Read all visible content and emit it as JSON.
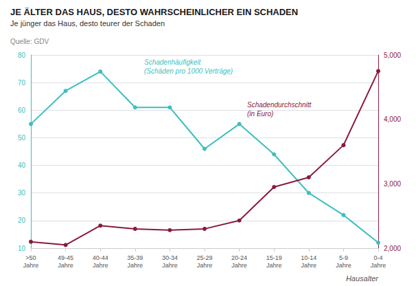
{
  "chart_data": {
    "type": "line",
    "title": "JE ÄLTER DAS HAUS, DESTO WAHRSCHEINLICHER EIN SCHADEN",
    "subtitle": "Je jünger das Haus, desto teurer der Schaden",
    "source": "Quelle: GDV",
    "xlabel": "Hausalter",
    "categories": [
      ">50\nJahre",
      "49-45\nJahre",
      "40-44\nJahre",
      "35-39\nJahre",
      "30-34\nJahre",
      "25-29\nJahre",
      "20-24\nJahre",
      "15-19\nJahre",
      "10-14\nJahre",
      "5-9\nJahre",
      "0-4\nJahre"
    ],
    "series": [
      {
        "name": "Schadenhäufigkeit\n(Schäden pro 1000 Verträge)",
        "color": "#3BBFBF",
        "values": [
          55,
          67,
          74,
          61,
          61,
          46,
          55,
          44,
          30,
          22,
          12
        ]
      },
      {
        "name": "Schadendurchschnitt\n(in Euro)",
        "color": "#8B1A3A",
        "values": [
          2100,
          2050,
          2350,
          2300,
          2280,
          2300,
          2430,
          2950,
          3100,
          3600,
          4750
        ],
        "axis": "y2"
      }
    ],
    "ylim": [
      10,
      80
    ],
    "yticks": [
      10,
      20,
      30,
      40,
      50,
      60,
      70,
      80
    ],
    "y2lim": [
      2000,
      5000
    ],
    "y2ticks": [
      2000,
      3000,
      4000,
      5000
    ],
    "grid": true,
    "marker": "circle"
  }
}
